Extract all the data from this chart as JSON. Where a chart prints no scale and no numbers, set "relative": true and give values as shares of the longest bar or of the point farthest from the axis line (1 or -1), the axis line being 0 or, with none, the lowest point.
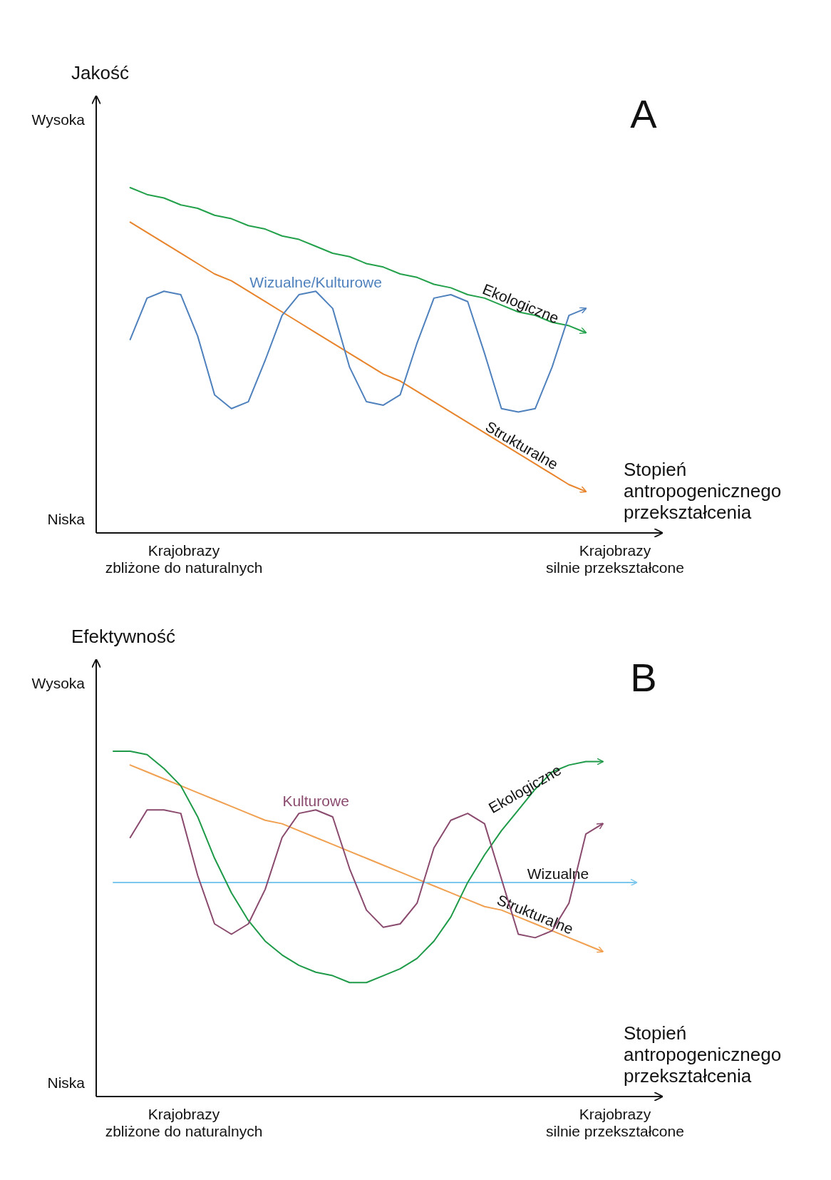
{
  "chart_data": [
    {
      "type": "line",
      "title": "A",
      "ylabel": "Jakość",
      "xlabel": "Stopień\nantropogenicznego\nprzekształcenia",
      "relative": true,
      "annotations": [
        "Wysoka",
        "Niska",
        "Krajobrazy\nzbliżone do naturalnych",
        "Krajobrazy\nsilnie przekształcone"
      ],
      "categories": [
        null,
        null,
        null,
        null,
        null,
        null,
        null,
        null,
        null,
        null,
        null,
        null,
        null,
        null,
        null,
        null,
        null,
        null,
        null,
        null,
        null,
        null,
        null,
        null,
        null,
        null,
        null,
        null,
        null,
        null,
        null,
        null
      ],
      "series": [
        {
          "name": "Ekologiczne",
          "color": "#22a04a",
          "values": [
            null,
            1,
            0.98,
            0.97,
            0.95,
            0.94,
            0.92,
            0.91,
            0.89,
            0.88,
            0.86,
            0.85,
            0.83,
            0.81,
            0.8,
            0.78,
            0.77,
            0.75,
            0.74,
            0.72,
            0.71,
            0.69,
            0.68,
            0.66,
            0.64,
            0.63,
            0.61,
            0.6,
            0.58,
            null,
            null,
            null
          ]
        },
        {
          "name": "Strukturalne",
          "color": "#e8842c",
          "values": [
            null,
            0.9,
            0.87,
            0.84,
            0.81,
            0.78,
            0.75,
            0.73,
            0.7,
            0.67,
            0.64,
            0.61,
            0.58,
            0.55,
            0.52,
            0.49,
            0.46,
            0.44,
            0.41,
            0.38,
            0.35,
            0.32,
            0.29,
            0.26,
            0.23,
            0.2,
            0.17,
            0.14,
            0.12,
            null,
            null,
            null
          ]
        },
        {
          "name": "Wizualne/Kulturowe",
          "color": "#4f81bd",
          "values": [
            null,
            0.56,
            0.68,
            0.7,
            0.69,
            0.57,
            0.4,
            0.36,
            0.38,
            0.5,
            0.63,
            0.69,
            0.7,
            0.65,
            0.48,
            0.38,
            0.37,
            0.4,
            0.55,
            0.68,
            0.69,
            0.67,
            0.52,
            0.36,
            0.35,
            0.36,
            0.48,
            0.63,
            0.65,
            null,
            null,
            null
          ]
        }
      ]
    },
    {
      "type": "line",
      "title": "B",
      "ylabel": "Efektywność",
      "xlabel": "Stopień\nantropogenicznego\nprzekształcenia",
      "relative": true,
      "annotations": [
        "Wysoka",
        "Niska",
        "Krajobrazy\nzbliżone do naturalnych",
        "Krajobrazy\nsilnie przekształcone"
      ],
      "categories": [
        null,
        null,
        null,
        null,
        null,
        null,
        null,
        null,
        null,
        null,
        null,
        null,
        null,
        null,
        null,
        null,
        null,
        null,
        null,
        null,
        null,
        null,
        null,
        null,
        null,
        null,
        null,
        null,
        null,
        null,
        null,
        null
      ],
      "series": [
        {
          "name": "Strukturalne",
          "color": "#f0a050",
          "values": [
            null,
            0.96,
            0.94,
            0.92,
            0.9,
            0.88,
            0.86,
            0.84,
            0.82,
            0.8,
            0.79,
            0.77,
            0.75,
            0.73,
            0.71,
            0.69,
            0.67,
            0.65,
            0.63,
            0.61,
            0.59,
            0.57,
            0.55,
            0.54,
            0.52,
            0.5,
            0.48,
            0.46,
            0.44,
            0.42,
            null,
            null
          ]
        },
        {
          "name": "Wizualne",
          "color": "#7cc7ee",
          "values": [
            0.62,
            0.62,
            0.62,
            0.62,
            0.62,
            0.62,
            0.62,
            0.62,
            0.62,
            0.62,
            0.62,
            0.62,
            0.62,
            0.62,
            0.62,
            0.62,
            0.62,
            0.62,
            0.62,
            0.62,
            0.62,
            0.62,
            0.62,
            0.62,
            0.62,
            0.62,
            0.62,
            0.62,
            0.62,
            0.62,
            0.62,
            0.62
          ]
        },
        {
          "name": "Ekologiczne",
          "color": "#1e9a48",
          "values": [
            1,
            1,
            0.99,
            0.95,
            0.9,
            0.81,
            0.69,
            0.59,
            0.51,
            0.45,
            0.41,
            0.38,
            0.36,
            0.35,
            0.33,
            0.33,
            0.35,
            0.37,
            0.4,
            0.45,
            0.52,
            0.62,
            0.7,
            0.77,
            0.83,
            0.89,
            0.94,
            0.96,
            0.97,
            0.97,
            null,
            null
          ]
        },
        {
          "name": "Kulturowe",
          "color": "#8a4a6e",
          "values": [
            null,
            0.75,
            0.83,
            0.83,
            0.82,
            0.64,
            0.5,
            0.47,
            0.5,
            0.6,
            0.75,
            0.82,
            0.83,
            0.81,
            0.66,
            0.54,
            0.49,
            0.5,
            0.56,
            0.72,
            0.8,
            0.82,
            0.79,
            0.63,
            0.47,
            0.46,
            0.48,
            0.56,
            0.76,
            0.79,
            null,
            null
          ]
        }
      ]
    }
  ]
}
